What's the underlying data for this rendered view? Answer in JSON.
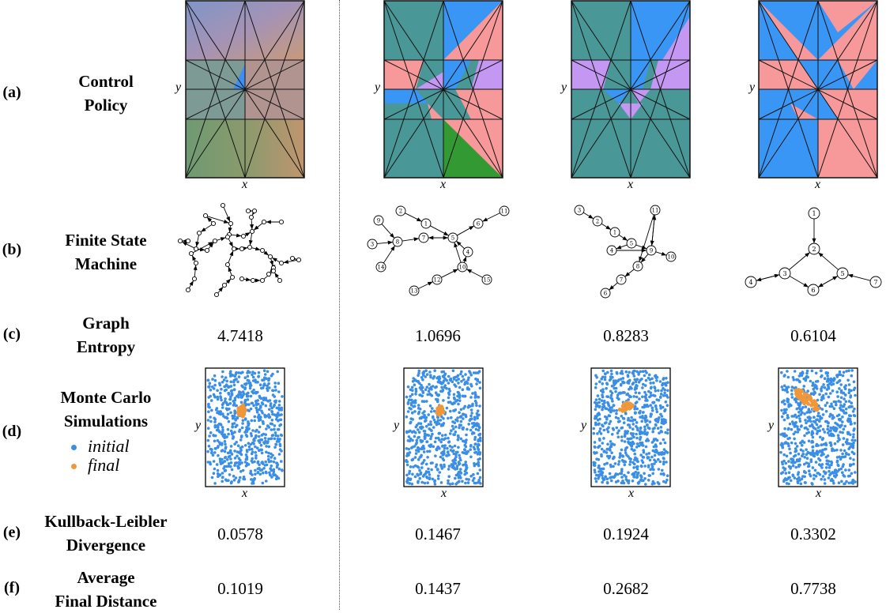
{
  "rows": {
    "a": {
      "tag": "(a)",
      "title_l1": "Control",
      "title_l2": "Policy"
    },
    "b": {
      "tag": "(b)",
      "title_l1": "Finite State",
      "title_l2": "Machine"
    },
    "c": {
      "tag": "(c)",
      "title_l1": "Graph",
      "title_l2": "Entropy"
    },
    "d": {
      "tag": "(d)",
      "title_l1": "Monte Carlo",
      "title_l2": "Simulations"
    },
    "e": {
      "tag": "(e)",
      "title_l1": "Kullback-Leibler",
      "title_l2": "Divergence"
    },
    "f": {
      "tag": "(f)",
      "title_l1": "Average",
      "title_l2": "Final Distance"
    }
  },
  "legend": {
    "initial": "initial",
    "final": "final",
    "initial_color": "#3a8ee6",
    "final_color": "#f0973a"
  },
  "axes": {
    "x": "x",
    "y": "y"
  },
  "columns": [
    {
      "entropy": "4.7418",
      "kl": "0.0578",
      "distance": "0.1019"
    },
    {
      "entropy": "1.0696",
      "kl": "0.1467",
      "distance": "0.1437"
    },
    {
      "entropy": "0.8283",
      "kl": "0.1924",
      "distance": "0.2682"
    },
    {
      "entropy": "0.6104",
      "kl": "0.3302",
      "distance": "0.7738"
    }
  ],
  "fsm": {
    "col1": {
      "nodes": [
        "9",
        "2",
        "1",
        "3",
        "8",
        "7",
        "5",
        "6",
        "11",
        "14",
        "4",
        "10",
        "12",
        "13",
        "15"
      ]
    },
    "col2": {
      "nodes": [
        "3",
        "2",
        "1",
        "5",
        "11",
        "4",
        "9",
        "10",
        "8",
        "7",
        "6"
      ]
    },
    "col3": {
      "nodes": [
        "1",
        "2",
        "3",
        "4",
        "5",
        "6",
        "7"
      ]
    }
  },
  "colors": {
    "teal": "#4a9797",
    "salmon": "#f7999a",
    "blue": "#3996f5",
    "lilac": "#c497f2",
    "green": "#339933"
  }
}
